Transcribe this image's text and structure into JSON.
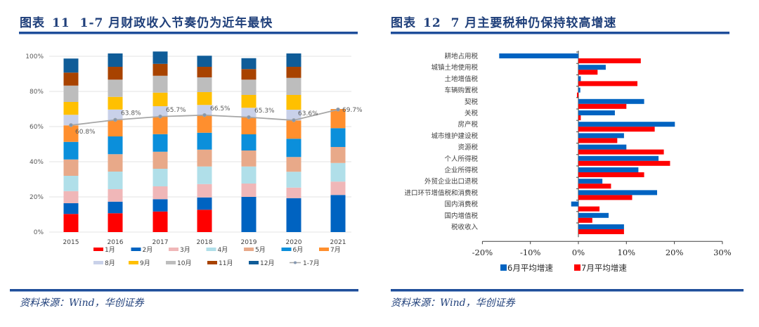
{
  "left": {
    "figure_label": "图表",
    "figure_number": "11",
    "title": "1-7 月财政收入节奏仍为近年最快",
    "source": "资料来源：Wind，华创证券"
  },
  "right": {
    "figure_label": "图表",
    "figure_number": "12",
    "title": "7 月主要税种仍保持较高增速",
    "source": "资料来源：Wind，华创证券"
  },
  "chart_data": [
    {
      "type": "bar",
      "stacked": true,
      "title": "1-7 月财政收入节奏仍为近年最快",
      "xlabel": "",
      "ylabel": "",
      "categories": [
        "2015",
        "2016",
        "2017",
        "2018",
        "2019",
        "2020",
        "2021"
      ],
      "ylim": [
        0,
        100
      ],
      "yticks": [
        "0%",
        "20%",
        "40%",
        "60%",
        "80%",
        "100%"
      ],
      "grid": true,
      "legend_position": "bottom",
      "series": [
        {
          "name": "1月",
          "color": "#ff0000",
          "values": [
            10.3,
            10.7,
            11.7,
            12.7,
            0,
            0,
            0
          ]
        },
        {
          "name": "2月",
          "color": "#0063c1",
          "values": [
            6.1,
            6.6,
            7.0,
            7.0,
            20.0,
            19.3,
            21.1
          ]
        },
        {
          "name": "3月",
          "color": "#f0b7b8",
          "values": [
            6.9,
            7.1,
            7.3,
            7.6,
            7.6,
            6.0,
            7.6
          ]
        },
        {
          "name": "4月",
          "color": "#b0dfe9",
          "values": [
            8.7,
            10.0,
            10.0,
            10.0,
            9.7,
            9.0,
            10.6
          ]
        },
        {
          "name": "5月",
          "color": "#e8a989",
          "values": [
            9.3,
            9.9,
            9.7,
            9.6,
            9.1,
            8.4,
            9.1
          ]
        },
        {
          "name": "6月",
          "color": "#0b8fdb",
          "values": [
            10.0,
            10.1,
            10.0,
            9.6,
            9.2,
            10.4,
            10.7
          ]
        },
        {
          "name": "7月",
          "color": "#ff8f2e",
          "values": [
            9.4,
            9.3,
            9.9,
            10.2,
            9.7,
            10.4,
            10.9
          ]
        },
        {
          "name": "8月",
          "color": "#c9d1e9",
          "values": [
            6.0,
            6.0,
            6.0,
            5.6,
            5.4,
            6.1,
            null
          ]
        },
        {
          "name": "9月",
          "color": "#ffc000",
          "values": [
            7.3,
            7.2,
            7.7,
            7.3,
            7.3,
            8.4,
            null
          ]
        },
        {
          "name": "10月",
          "color": "#bdbdbd",
          "values": [
            9.3,
            9.8,
            9.6,
            8.4,
            8.7,
            9.7,
            null
          ]
        },
        {
          "name": "11月",
          "color": "#a84300",
          "values": [
            7.4,
            7.3,
            6.8,
            6.0,
            6.0,
            6.3,
            null
          ]
        },
        {
          "name": "12月",
          "color": "#0f5c98",
          "values": [
            8.0,
            7.6,
            7.0,
            6.3,
            6.2,
            7.6,
            null
          ]
        }
      ],
      "line_series": {
        "name": "1-7月",
        "color": "#999999",
        "values": [
          60.8,
          63.8,
          65.7,
          66.5,
          65.3,
          63.6,
          69.7
        ],
        "labels": [
          "60.8%",
          "63.8%",
          "65.7%",
          "66.5%",
          "65.3%",
          "63.6%",
          "69.7%"
        ]
      }
    },
    {
      "type": "bar",
      "orientation": "horizontal",
      "title": "7 月主要税种仍保持较高增速",
      "xlabel": "",
      "ylabel": "",
      "categories": [
        "耕地占用税",
        "城镇土地使用税",
        "土地增值税",
        "车辆购置税",
        "契税",
        "关税",
        "房产税",
        "城市维护建设税",
        "资源税",
        "个人所得税",
        "企业所得税",
        "外贸企业出口退税",
        "进口环节增值税和消费税",
        "国内消费税",
        "国内增值税",
        "税收收入"
      ],
      "xlim": [
        -20,
        30
      ],
      "xticks": [
        "-20%",
        "-10%",
        "0%",
        "10%",
        "20%",
        "30%"
      ],
      "grid": false,
      "legend_position": "bottom",
      "series": [
        {
          "name": "6月平均增速",
          "color": "#0063c1",
          "values": [
            -16.5,
            5.7,
            0.5,
            0.4,
            13.7,
            7.6,
            20.1,
            9.5,
            10.0,
            16.7,
            12.5,
            5.0,
            16.4,
            -1.5,
            6.3,
            9.5
          ]
        },
        {
          "name": "7月平均增速",
          "color": "#ff0000",
          "values": [
            13.0,
            4.0,
            12.3,
            -0.3,
            10.0,
            0.5,
            15.9,
            8.1,
            17.8,
            19.1,
            13.7,
            6.8,
            11.2,
            4.4,
            2.9,
            9.5
          ]
        }
      ]
    }
  ]
}
